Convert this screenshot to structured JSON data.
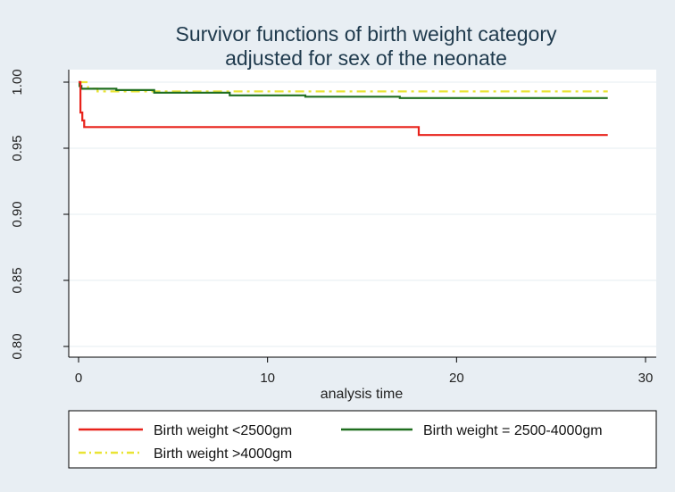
{
  "chart_data": {
    "type": "line",
    "title": [
      "Survivor functions of birth weight category",
      "adjusted for sex of the neonate"
    ],
    "xlabel": "analysis time",
    "ylabel": "",
    "xlim": [
      0,
      30
    ],
    "ylim": [
      0.8,
      1.0
    ],
    "xticks": [
      0,
      10,
      20,
      30
    ],
    "xtick_labels": [
      "0",
      "10",
      "20",
      "30"
    ],
    "yticks": [
      0.8,
      0.85,
      0.9,
      0.95,
      1.0
    ],
    "ytick_labels": [
      "0.80",
      "0.85",
      "0.90",
      "0.95",
      "1.00"
    ],
    "grid": "horizontal",
    "legend_position": "bottom",
    "series": [
      {
        "name": "Birth weight <2500gm",
        "color": "#e8221b",
        "style": "solid",
        "points": [
          [
            0,
            1.0
          ],
          [
            0.1,
            1.0
          ],
          [
            0.1,
            0.977
          ],
          [
            0.2,
            0.977
          ],
          [
            0.2,
            0.971
          ],
          [
            0.3,
            0.971
          ],
          [
            0.3,
            0.966
          ],
          [
            18.0,
            0.966
          ],
          [
            18.0,
            0.96
          ],
          [
            28.0,
            0.96
          ]
        ]
      },
      {
        "name": "Birth weight = 2500-4000gm",
        "color": "#1f6e1f",
        "style": "solid",
        "points": [
          [
            0,
            1.0
          ],
          [
            0.05,
            1.0
          ],
          [
            0.05,
            0.997
          ],
          [
            0.15,
            0.997
          ],
          [
            0.15,
            0.995
          ],
          [
            2.0,
            0.995
          ],
          [
            2.0,
            0.994
          ],
          [
            4.0,
            0.994
          ],
          [
            4.0,
            0.992
          ],
          [
            8.0,
            0.992
          ],
          [
            8.0,
            0.99
          ],
          [
            12.0,
            0.99
          ],
          [
            12.0,
            0.989
          ],
          [
            17.0,
            0.989
          ],
          [
            17.0,
            0.988
          ],
          [
            28.0,
            0.988
          ]
        ]
      },
      {
        "name": "Birth weight >4000gm",
        "color": "#e9e435",
        "style": "dash",
        "points": [
          [
            0,
            1.0
          ],
          [
            0.5,
            1.0
          ],
          [
            0.5,
            0.995
          ],
          [
            1.0,
            0.995
          ],
          [
            1.0,
            0.993
          ],
          [
            28.0,
            0.993
          ]
        ]
      }
    ]
  }
}
